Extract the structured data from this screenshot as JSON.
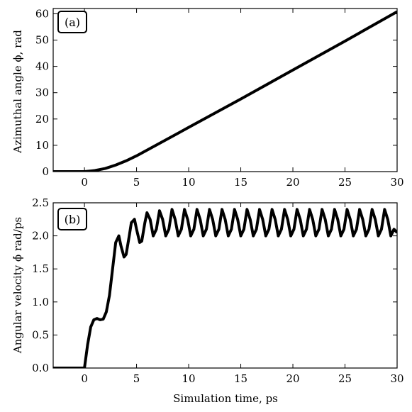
{
  "chart_data": [
    {
      "type": "line",
      "panel_label": "(a)",
      "xlabel": "",
      "ylabel": "Azimuthal angle ϕ, rad",
      "xlim": [
        -3,
        30
      ],
      "ylim": [
        0,
        62
      ],
      "xticks": [
        0,
        5,
        10,
        15,
        20,
        25,
        30
      ],
      "yticks": [
        0,
        10,
        20,
        30,
        40,
        50,
        60
      ],
      "grid": false,
      "series": [
        {
          "x": [
            -3,
            0,
            1,
            2,
            3,
            4,
            5,
            7,
            10,
            15,
            20,
            25,
            30
          ],
          "y": [
            0,
            0,
            0.4,
            1.2,
            2.5,
            4.1,
            6.0,
            10.3,
            16.8,
            27.6,
            38.6,
            49.6,
            60.8
          ]
        }
      ]
    },
    {
      "type": "line",
      "panel_label": "(b)",
      "xlabel": "Simulation time, ps",
      "ylabel": "Angular velocity ϕ̇ rad/ps",
      "xlim": [
        -3,
        30
      ],
      "ylim": [
        0,
        2.5
      ],
      "xticks": [
        0,
        5,
        10,
        15,
        20,
        25,
        30
      ],
      "yticks": [
        0.0,
        0.5,
        1.0,
        1.5,
        2.0,
        2.5
      ],
      "ytick_labels": [
        "0.0",
        "0.5",
        "1.0",
        "1.5",
        "2.0",
        "2.5"
      ],
      "grid": false,
      "series": [
        {
          "x": [
            -3,
            0,
            0.3,
            0.6,
            0.9,
            1.2,
            1.5,
            1.8,
            2.1,
            2.4,
            2.7,
            3.0,
            3.3,
            3.5,
            3.8,
            4.0,
            4.3,
            4.5,
            4.8,
            5.0,
            5.3,
            5.5,
            5.8,
            6.0,
            6.3,
            6.6,
            6.9,
            7.2,
            7.5,
            7.8,
            8.1,
            8.4,
            8.7,
            9.0,
            9.3,
            9.6,
            9.9,
            10.2,
            10.5,
            10.8,
            11.1,
            11.4,
            11.7,
            12.0,
            12.3,
            12.6,
            12.9,
            13.2,
            13.5,
            13.8,
            14.1,
            14.4,
            14.7,
            15.0,
            15.3,
            15.6,
            15.9,
            16.2,
            16.5,
            16.8,
            17.1,
            17.4,
            17.7,
            18.0,
            18.3,
            18.6,
            18.9,
            19.2,
            19.5,
            19.8,
            20.1,
            20.4,
            20.7,
            21.0,
            21.3,
            21.6,
            21.9,
            22.2,
            22.5,
            22.8,
            23.1,
            23.4,
            23.7,
            24.0,
            24.3,
            24.6,
            24.9,
            25.2,
            25.5,
            25.8,
            26.1,
            26.4,
            26.7,
            27.0,
            27.3,
            27.6,
            27.9,
            28.2,
            28.5,
            28.8,
            29.1,
            29.4,
            29.7,
            30.0
          ],
          "y": [
            0,
            0,
            0.35,
            0.62,
            0.73,
            0.75,
            0.73,
            0.74,
            0.85,
            1.1,
            1.5,
            1.9,
            2.0,
            1.85,
            1.68,
            1.72,
            2.0,
            2.2,
            2.25,
            2.1,
            1.9,
            1.92,
            2.2,
            2.35,
            2.25,
            2.0,
            2.1,
            2.38,
            2.25,
            2.0,
            2.1,
            2.4,
            2.25,
            2.0,
            2.1,
            2.4,
            2.25,
            2.0,
            2.1,
            2.4,
            2.25,
            2.0,
            2.1,
            2.4,
            2.25,
            2.0,
            2.1,
            2.4,
            2.25,
            2.0,
            2.1,
            2.4,
            2.25,
            2.0,
            2.1,
            2.4,
            2.25,
            2.0,
            2.1,
            2.4,
            2.25,
            2.0,
            2.1,
            2.4,
            2.25,
            2.0,
            2.1,
            2.4,
            2.25,
            2.0,
            2.1,
            2.4,
            2.25,
            2.0,
            2.1,
            2.4,
            2.25,
            2.0,
            2.1,
            2.4,
            2.25,
            2.0,
            2.1,
            2.4,
            2.25,
            2.0,
            2.1,
            2.4,
            2.25,
            2.0,
            2.1,
            2.4,
            2.25,
            2.0,
            2.1,
            2.4,
            2.25,
            2.0,
            2.1,
            2.4,
            2.25,
            2.0,
            2.1,
            2.05
          ]
        }
      ]
    }
  ],
  "colors": {
    "line": "#000000",
    "axes": "#000000",
    "background": "#ffffff"
  }
}
